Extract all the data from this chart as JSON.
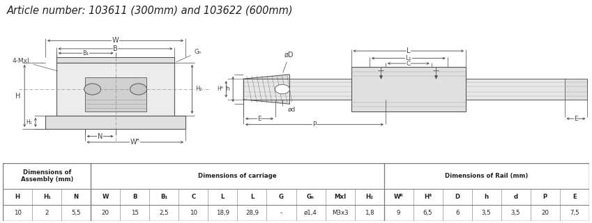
{
  "title": "Article number: 103611 (300mm) and 103622 (600mm)",
  "title_fontsize": 10.5,
  "bg_color": "#ffffff",
  "line_color": "#555555",
  "dim_color": "#444444",
  "table": {
    "col_headers": [
      "H",
      "H₁",
      "N",
      "W",
      "B",
      "B₁",
      "C",
      "L",
      "L",
      "G",
      "Gₙ",
      "Mxl",
      "H₂",
      "Wᴿ",
      "Hᴿ",
      "D",
      "h",
      "d",
      "P",
      "E"
    ],
    "values": [
      "10",
      "2",
      "5,5",
      "20",
      "15",
      "2,5",
      "10",
      "18,9",
      "28,9",
      "-",
      "ø1,4",
      "M3x3",
      "1,8",
      "9",
      "6,5",
      "6",
      "3,5",
      "3,5",
      "20",
      "7,5"
    ],
    "groups": [
      {
        "text": "Dimensions of\nAssembly (mm)",
        "c0": 0,
        "c1": 3
      },
      {
        "text": "Dimensions of carriage",
        "c0": 3,
        "c1": 13
      },
      {
        "text": "Dimensions of Rail (mm)",
        "c0": 13,
        "c1": 20
      }
    ],
    "border_color": "#777777"
  }
}
